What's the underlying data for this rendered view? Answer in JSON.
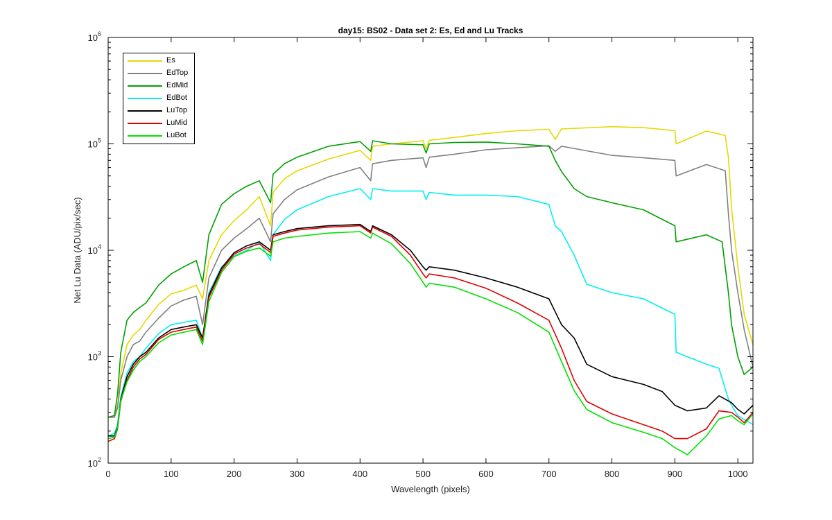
{
  "chart_data": {
    "type": "line",
    "title": "day15: BS02 - Data set 2: Es, Ed and Lu Tracks",
    "xlabel": "Wavelength (pixels)",
    "ylabel": "Net Lu Data (ADU/pix/sec)",
    "xlim": [
      0,
      1024
    ],
    "ylim": [
      100,
      1000000
    ],
    "yscale": "log",
    "xticks": [
      0,
      100,
      200,
      300,
      400,
      500,
      600,
      700,
      800,
      900,
      1000
    ],
    "ytick_labels": [
      {
        "base": "10",
        "exp": "2",
        "value": 100
      },
      {
        "base": "10",
        "exp": "3",
        "value": 1000
      },
      {
        "base": "10",
        "exp": "4",
        "value": 10000
      },
      {
        "base": "10",
        "exp": "5",
        "value": 100000
      },
      {
        "base": "10",
        "exp": "6",
        "value": 1000000
      }
    ],
    "grid": false,
    "legend_position": "top-left",
    "series": [
      {
        "name": "Es",
        "color": "#e6d800",
        "x": [
          0,
          10,
          15,
          20,
          30,
          40,
          50,
          60,
          80,
          100,
          120,
          140,
          150,
          160,
          180,
          200,
          220,
          240,
          258,
          262,
          280,
          300,
          350,
          400,
          417,
          420,
          450,
          500,
          505,
          510,
          550,
          600,
          650,
          700,
          710,
          720,
          800,
          850,
          900,
          902,
          950,
          980,
          985,
          990,
          1000,
          1010,
          1024
        ],
        "y": [
          270,
          280,
          350,
          700,
          1300,
          1600,
          1800,
          2200,
          3100,
          3900,
          4200,
          4700,
          3500,
          8000,
          14000,
          19000,
          24000,
          32000,
          17000,
          35000,
          47000,
          56000,
          72000,
          87000,
          70000,
          95000,
          100000,
          107000,
          90000,
          108000,
          115000,
          125000,
          133000,
          137000,
          110000,
          138000,
          145000,
          142000,
          133000,
          100000,
          132000,
          120000,
          75000,
          25000,
          7000,
          2500,
          1300
        ]
      },
      {
        "name": "EdTop",
        "color": "#808080",
        "x": [
          0,
          10,
          15,
          20,
          30,
          40,
          50,
          60,
          80,
          100,
          120,
          140,
          150,
          160,
          180,
          200,
          220,
          240,
          258,
          262,
          280,
          300,
          350,
          400,
          417,
          420,
          450,
          500,
          505,
          510,
          550,
          600,
          650,
          700,
          710,
          720,
          800,
          850,
          900,
          902,
          950,
          980,
          985,
          990,
          1000,
          1010,
          1024
        ],
        "y": [
          270,
          270,
          330,
          600,
          1000,
          1300,
          1400,
          1700,
          2300,
          3000,
          3400,
          3700,
          2000,
          5500,
          10000,
          13000,
          16000,
          20000,
          12000,
          22000,
          30000,
          37000,
          49000,
          60000,
          45000,
          65000,
          70000,
          74000,
          60000,
          75000,
          80000,
          88000,
          92000,
          96000,
          85000,
          95000,
          78000,
          74000,
          70000,
          50000,
          64000,
          56000,
          22000,
          10000,
          4000,
          1800,
          800
        ]
      },
      {
        "name": "EdMid",
        "color": "#00a000",
        "x": [
          0,
          10,
          15,
          20,
          30,
          40,
          50,
          60,
          80,
          100,
          120,
          140,
          150,
          160,
          180,
          200,
          220,
          240,
          258,
          262,
          280,
          300,
          350,
          400,
          417,
          420,
          450,
          500,
          505,
          510,
          550,
          600,
          650,
          700,
          710,
          720,
          740,
          760,
          800,
          850,
          900,
          902,
          950,
          975,
          985,
          990,
          1000,
          1010,
          1024
        ],
        "y": [
          270,
          280,
          450,
          1100,
          2200,
          2600,
          2900,
          3200,
          4700,
          6000,
          7000,
          8000,
          5000,
          14000,
          27000,
          34000,
          40000,
          45000,
          28000,
          52000,
          65000,
          75000,
          95000,
          105000,
          85000,
          107000,
          100000,
          98000,
          82000,
          100000,
          103000,
          104000,
          100000,
          95000,
          70000,
          55000,
          38000,
          32000,
          28000,
          24000,
          17000,
          12000,
          14000,
          12000,
          4000,
          2000,
          1000,
          680,
          800
        ]
      },
      {
        "name": "EdBot",
        "color": "#00f0f0",
        "x": [
          0,
          10,
          15,
          20,
          30,
          40,
          50,
          60,
          80,
          100,
          120,
          140,
          150,
          160,
          180,
          200,
          220,
          240,
          258,
          262,
          280,
          300,
          350,
          400,
          417,
          420,
          450,
          500,
          505,
          510,
          550,
          600,
          650,
          700,
          710,
          720,
          740,
          760,
          800,
          850,
          900,
          902,
          950,
          970,
          980,
          985,
          990,
          1000,
          1024
        ],
        "y": [
          180,
          190,
          230,
          420,
          700,
          900,
          1000,
          1200,
          1650,
          2000,
          2100,
          2200,
          1500,
          4000,
          7000,
          8800,
          10000,
          12000,
          8000,
          14000,
          19500,
          24000,
          32000,
          38000,
          30000,
          38000,
          36000,
          36000,
          30000,
          35000,
          33000,
          33000,
          32000,
          27000,
          17000,
          15000,
          9000,
          4800,
          4000,
          3500,
          2500,
          1100,
          850,
          780,
          500,
          400,
          350,
          280,
          230
        ]
      },
      {
        "name": "LuTop",
        "color": "#000000",
        "x": [
          0,
          10,
          15,
          20,
          30,
          40,
          50,
          60,
          80,
          100,
          120,
          140,
          150,
          160,
          180,
          200,
          220,
          240,
          258,
          262,
          280,
          300,
          350,
          400,
          417,
          420,
          450,
          480,
          500,
          505,
          510,
          550,
          600,
          650,
          700,
          720,
          740,
          760,
          800,
          850,
          880,
          900,
          920,
          950,
          970,
          990,
          1000,
          1010,
          1024
        ],
        "y": [
          180,
          180,
          220,
          400,
          650,
          850,
          1000,
          1100,
          1500,
          1800,
          1900,
          2000,
          1500,
          3800,
          6800,
          9500,
          11000,
          12000,
          10000,
          14000,
          15000,
          16000,
          17000,
          17500,
          15000,
          17000,
          14000,
          10000,
          7000,
          6500,
          7000,
          6500,
          5500,
          4500,
          3500,
          2000,
          1500,
          850,
          650,
          550,
          470,
          350,
          310,
          330,
          430,
          370,
          320,
          290,
          350
        ]
      },
      {
        "name": "LuMid",
        "color": "#e00000",
        "x": [
          0,
          10,
          15,
          20,
          30,
          40,
          50,
          60,
          80,
          100,
          120,
          140,
          150,
          160,
          180,
          200,
          220,
          240,
          258,
          262,
          280,
          300,
          350,
          400,
          417,
          420,
          450,
          480,
          500,
          505,
          510,
          550,
          600,
          650,
          700,
          720,
          740,
          760,
          800,
          850,
          880,
          900,
          920,
          950,
          970,
          990,
          1000,
          1010,
          1024
        ],
        "y": [
          160,
          170,
          210,
          380,
          600,
          800,
          950,
          1050,
          1450,
          1700,
          1800,
          1900,
          1400,
          3600,
          6500,
          9200,
          10500,
          11500,
          9500,
          13500,
          14500,
          15500,
          16500,
          17000,
          14500,
          16500,
          13500,
          9000,
          6000,
          5500,
          6000,
          5500,
          4400,
          3200,
          2200,
          1200,
          600,
          380,
          290,
          230,
          200,
          170,
          170,
          210,
          310,
          300,
          270,
          240,
          300
        ]
      },
      {
        "name": "LuBot",
        "color": "#00e000",
        "x": [
          0,
          10,
          15,
          20,
          30,
          40,
          50,
          60,
          80,
          100,
          120,
          140,
          150,
          160,
          180,
          200,
          220,
          240,
          258,
          262,
          280,
          300,
          350,
          400,
          417,
          420,
          450,
          480,
          500,
          505,
          510,
          550,
          600,
          650,
          700,
          720,
          740,
          760,
          800,
          850,
          880,
          900,
          920,
          950,
          970,
          990,
          1000,
          1010,
          1024
        ],
        "y": [
          170,
          175,
          215,
          390,
          580,
          750,
          900,
          1000,
          1350,
          1600,
          1700,
          1800,
          1300,
          3300,
          6200,
          8700,
          9800,
          10500,
          8800,
          12000,
          13000,
          13500,
          14500,
          15000,
          13000,
          14500,
          11500,
          7500,
          5000,
          4500,
          4900,
          4500,
          3500,
          2600,
          1700,
          900,
          480,
          320,
          240,
          195,
          170,
          140,
          120,
          180,
          260,
          280,
          250,
          230,
          290
        ]
      }
    ]
  }
}
